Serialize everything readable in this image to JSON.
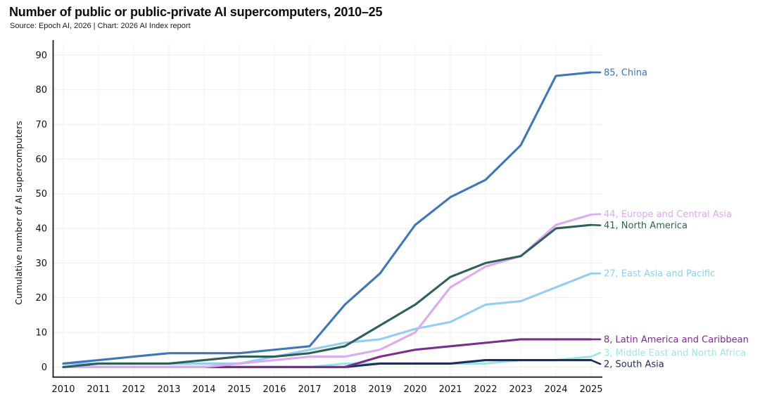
{
  "header": {
    "title": "Number of public or public-private AI supercomputers, 2010–25",
    "source": "Source: Epoch AI, 2026 | Chart: 2026 AI Index report"
  },
  "chart_data": {
    "type": "line",
    "title": "Number of public or public-private AI supercomputers, 2010–25",
    "xlabel": "",
    "ylabel": "Cumulative number of AI supercomputers",
    "x": [
      2010,
      2011,
      2012,
      2013,
      2014,
      2015,
      2016,
      2017,
      2018,
      2019,
      2020,
      2021,
      2022,
      2023,
      2024,
      2025
    ],
    "ylim": [
      0,
      90
    ],
    "yticks": [
      0,
      10,
      20,
      30,
      40,
      50,
      60,
      70,
      80,
      90
    ],
    "grid": true,
    "legend_position": "right-edge-labels",
    "series": [
      {
        "name": "China",
        "color": "#3d76ba",
        "values": [
          1,
          2,
          3,
          4,
          4,
          4,
          5,
          6,
          18,
          27,
          41,
          49,
          54,
          64,
          84,
          85
        ],
        "end_label": "85, China"
      },
      {
        "name": "Europe and Central Asia",
        "color": "#dcaaf1",
        "values": [
          0,
          0,
          0,
          0,
          0,
          1,
          2,
          3,
          3,
          5,
          10,
          23,
          29,
          32,
          41,
          44
        ],
        "end_label": "44, Europe and Central Asia"
      },
      {
        "name": "North America",
        "color": "#2e5f5b",
        "values": [
          0,
          1,
          1,
          1,
          2,
          3,
          3,
          4,
          6,
          12,
          18,
          26,
          30,
          32,
          40,
          41
        ],
        "end_label": "41, North America"
      },
      {
        "name": "East Asia and Pacific",
        "color": "#92cdf2",
        "values": [
          1,
          1,
          1,
          1,
          1,
          1,
          3,
          5,
          7,
          8,
          11,
          13,
          18,
          19,
          23,
          27
        ],
        "end_label": "27, East Asia and Pacific"
      },
      {
        "name": "Latin America and Caribbean",
        "color": "#7b2d8f",
        "values": [
          0,
          0,
          0,
          0,
          0,
          0,
          0,
          0,
          0,
          3,
          5,
          6,
          7,
          8,
          8,
          8
        ],
        "end_label": "8, Latin America and Caribbean"
      },
      {
        "name": "Middle East and North Africa",
        "color": "#9ae8e3",
        "values": [
          0,
          0,
          0,
          0,
          0,
          0,
          0,
          0,
          1,
          1,
          1,
          1,
          1,
          2,
          2,
          3
        ],
        "end_label": "3, Middle East and North Africa"
      },
      {
        "name": "South Asia",
        "color": "#222c5a",
        "values": [
          0,
          0,
          0,
          0,
          0,
          0,
          0,
          0,
          0,
          1,
          1,
          1,
          2,
          2,
          2,
          2
        ],
        "end_label": "2, South Asia"
      }
    ]
  }
}
